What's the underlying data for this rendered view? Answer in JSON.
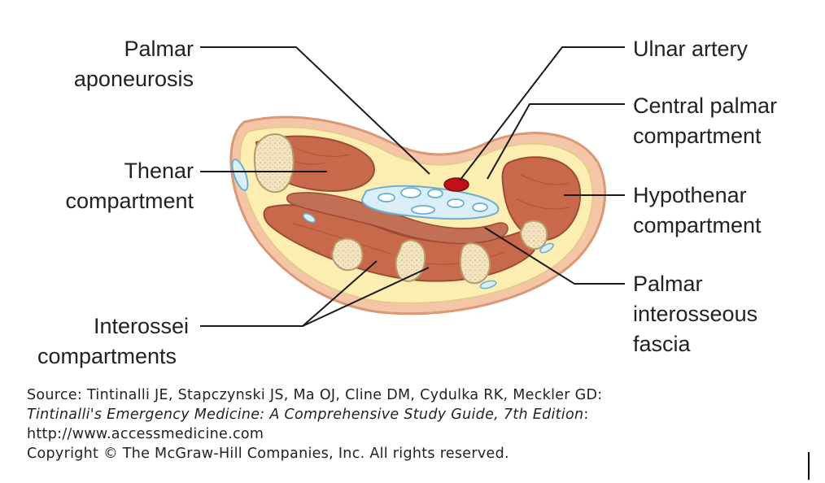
{
  "labels": {
    "palmar_aponeurosis": [
      "Palmar",
      "aponeurosis"
    ],
    "thenar": [
      "Thenar",
      "compartment"
    ],
    "interossei": [
      "Interossei",
      "compartments"
    ],
    "ulnar_artery": [
      "Ulnar artery"
    ],
    "central_palmar": [
      "Central palmar",
      "compartment"
    ],
    "hypothenar": [
      "Hypothenar",
      "compartment"
    ],
    "palmar_interosseous": [
      "Palmar",
      "interosseous",
      "fascia"
    ]
  },
  "source": {
    "line1": "Source: Tintinalli JE, Stapczynski JS, Ma OJ, Cline DM, Cydulka RK, Meckler GD:",
    "line2_title": "Tintinalli's Emergency Medicine: A Comprehensive Study Guide, 7th Edition",
    "line2_suffix": ":",
    "line3": "http://www.accessmedicine.com",
    "line4": "Copyright © The McGraw-Hill Companies, Inc. All rights reserved."
  },
  "colors": {
    "skin": "#f4c6a6",
    "skin_edge": "#d99878",
    "fat": "#fbeeb0",
    "fascia": "#d9eef7",
    "muscle": "#c8694c",
    "muscle_dark": "#9e4a35",
    "bone": "#f3e3bf",
    "artery": "#c0101a",
    "tendon": "#ffffff",
    "tendon_edge": "#6aaed2",
    "leader": "#1a1a1a"
  }
}
